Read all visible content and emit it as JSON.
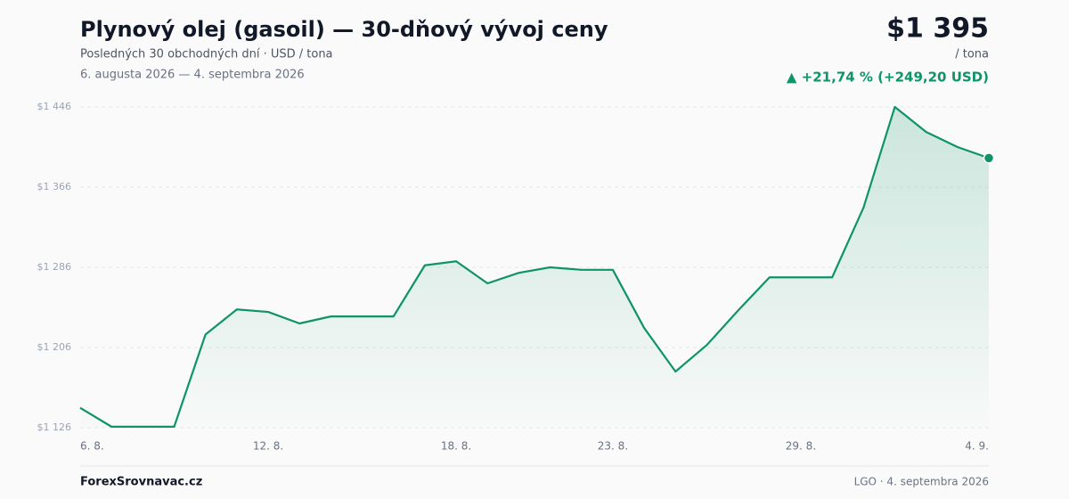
{
  "chart_data": {
    "type": "line",
    "title": "Plynový olej (gasoil) — 30-dňový vývoj ceny",
    "subtitle": "Posledných 30 obchodných dní · USD / tona",
    "date_range": "6. augusta 2026 — 4. septembra 2026",
    "price": "$1 395",
    "price_unit": "/ tona",
    "change": "▲ +21,74 % (+249,20 USD)",
    "color": "#0f9466",
    "categories": [
      "6. 8.",
      null,
      null,
      null,
      null,
      null,
      "12. 8.",
      null,
      null,
      null,
      null,
      null,
      "18. 8.",
      null,
      null,
      null,
      null,
      "23. 8.",
      null,
      null,
      null,
      null,
      null,
      "29. 8.",
      null,
      null,
      null,
      null,
      null,
      "4. 9."
    ],
    "values": [
      1145.8,
      1127,
      1127,
      1127,
      1219,
      1244,
      1241.5,
      1230,
      1237,
      1237,
      1237,
      1288,
      1292,
      1270,
      1280.5,
      1286,
      1283.5,
      1283.5,
      1225.5,
      1182,
      1208.5,
      1243,
      1276,
      1276,
      1276,
      1345.5,
      1446,
      1421,
      1406,
      1395
    ],
    "ylim": [
      1126,
      1446
    ],
    "yticks": [
      {
        "value": 1126,
        "label": "$1 126"
      },
      {
        "value": 1206,
        "label": "$1 206"
      },
      {
        "value": 1286,
        "label": "$1 286"
      },
      {
        "value": 1366,
        "label": "$1 366"
      },
      {
        "value": 1446,
        "label": "$1 446"
      }
    ],
    "grid": true
  },
  "footer": {
    "source": "ForexSrovnavac.cz",
    "note": "LGO · 4. septembra 2026"
  }
}
